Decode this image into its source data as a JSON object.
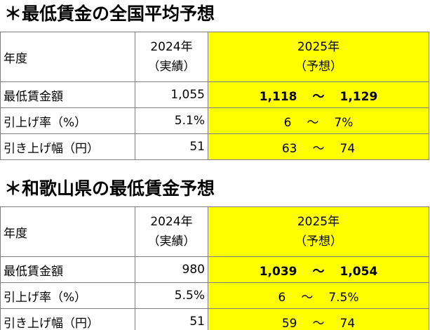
{
  "sections": [
    {
      "title": "＊最低賃金の全国平均予想",
      "header": {
        "col1": "年度",
        "col2_line1": "2024年",
        "col2_line2": "（実績）",
        "col3_line1": "2025年",
        "col3_line2": "（予想）"
      },
      "rows": [
        {
          "label": "最低賃金額",
          "actual": "1,055",
          "pred_low": "1,118",
          "sep": "〜",
          "pred_high": "1,129"
        },
        {
          "label": "引上げ率（%）",
          "actual": "5.1%",
          "pred_low": "6",
          "sep": "〜",
          "pred_high": "7%"
        },
        {
          "label": "引き上げ幅（円）",
          "actual": "51",
          "pred_low": "63",
          "sep": "〜",
          "pred_high": "74"
        }
      ]
    },
    {
      "title": "＊和歌山県の最低賃金予想",
      "header": {
        "col1": "年度",
        "col2_line1": "2024年",
        "col2_line2": "（実績）",
        "col3_line1": "2025年",
        "col3_line2": "（予想）"
      },
      "rows": [
        {
          "label": "最低賃金額",
          "actual": "980",
          "pred_low": "1,039",
          "sep": "〜",
          "pred_high": "1,054"
        },
        {
          "label": "引上げ率（%）",
          "actual": "5.5%",
          "pred_low": "6",
          "sep": "〜",
          "pred_high": "7.5%"
        },
        {
          "label": "引き上げ幅（円）",
          "actual": "51",
          "pred_low": "59",
          "sep": "〜",
          "pred_high": "74"
        }
      ]
    }
  ],
  "colors": {
    "highlight": "#ffff00",
    "border": "#7f7f7f"
  }
}
